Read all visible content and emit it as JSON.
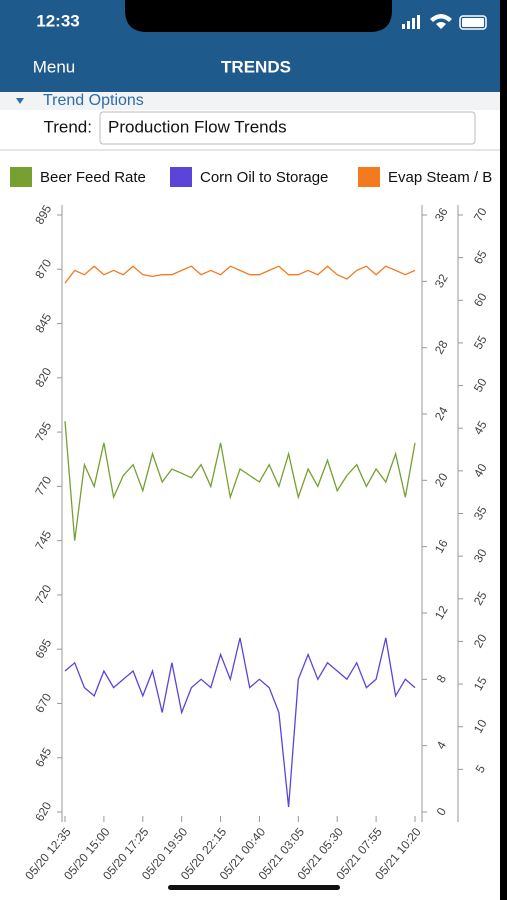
{
  "status_bar": {
    "time": "12:33"
  },
  "nav": {
    "left": "Menu",
    "title": "TRENDS"
  },
  "options": {
    "section": "Trend Options",
    "trend_label": "Trend:",
    "trend_value": "Production Flow Trends"
  },
  "chart_data": {
    "type": "line",
    "categories": [
      "05/20 12:35",
      null,
      null,
      null,
      "05/20 15:00",
      null,
      null,
      null,
      "05/20 17:25",
      null,
      null,
      null,
      "05/20 19:50",
      null,
      null,
      null,
      "05/20 22:15",
      null,
      null,
      null,
      "05/21 00:40",
      null,
      null,
      null,
      "05/21 03:05",
      null,
      null,
      null,
      "05/21 05:30",
      null,
      null,
      null,
      "05/21 07:55",
      null,
      null,
      null,
      "05/21 10:20"
    ],
    "series": [
      {
        "name": "Beer Feed Rate",
        "color": "#76a032",
        "axis": "y",
        "values": [
          800,
          745,
          780,
          770,
          790,
          765,
          775,
          780,
          768,
          785,
          772,
          778,
          776,
          774,
          780,
          770,
          790,
          765,
          778,
          775,
          772,
          780,
          770,
          785,
          765,
          778,
          770,
          782,
          768,
          775,
          780,
          770,
          778,
          772,
          785,
          765,
          790
        ]
      },
      {
        "name": "Corn Oil to Storage",
        "color": "#5a45d8",
        "axis": "y2",
        "values": [
          8.5,
          9,
          7.5,
          7,
          8.5,
          7.5,
          8,
          8.5,
          7,
          8.5,
          6,
          9,
          6,
          7.5,
          8,
          7.5,
          9.5,
          8,
          10.5,
          7.5,
          8,
          7.5,
          6,
          0.3,
          8,
          9.5,
          8,
          9,
          8.5,
          8,
          9,
          7.5,
          8,
          10.5,
          7,
          8,
          7.5
        ]
      },
      {
        "name": "Evap Steam / B",
        "color": "#f47a20",
        "axis": "y3",
        "values": [
          62,
          63.5,
          63,
          64,
          63,
          63.5,
          63,
          64,
          63,
          62.8,
          63,
          63,
          63.5,
          64,
          63,
          63.5,
          63,
          64,
          63.5,
          63,
          63,
          63.5,
          64,
          63,
          63,
          63.5,
          63,
          64,
          63,
          62.5,
          63.5,
          64,
          63,
          64,
          63.5,
          63,
          63.5
        ]
      }
    ],
    "ylim": [
      620,
      895
    ],
    "yticks": [
      620,
      645,
      670,
      695,
      720,
      745,
      770,
      795,
      820,
      845,
      870,
      895
    ],
    "y2lim": [
      0,
      36
    ],
    "y2ticks": [
      0,
      4,
      8,
      12,
      16,
      20,
      24,
      28,
      32,
      36
    ],
    "y3lim": [
      0,
      70
    ],
    "y3ticks": [
      5,
      10,
      15,
      20,
      25,
      30,
      35,
      40,
      45,
      50,
      55,
      60,
      65,
      70
    ],
    "grid": false
  }
}
